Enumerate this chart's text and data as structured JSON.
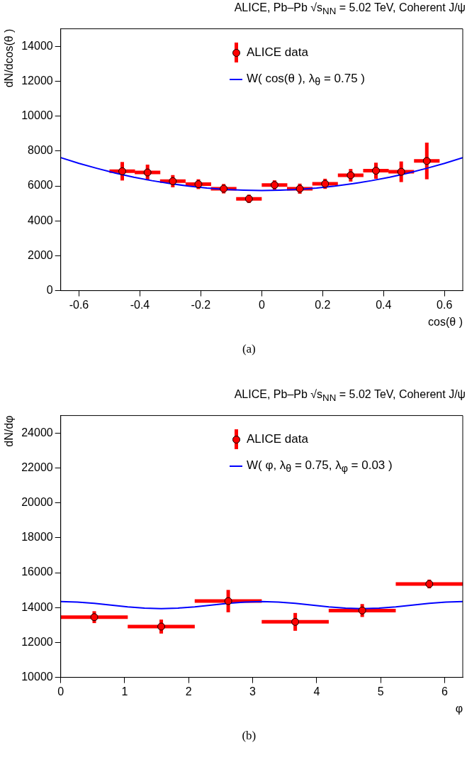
{
  "chart_data": [
    {
      "type": "scatter",
      "title": "ALICE, Pb–Pb √s$_{NN}$ = 5.02 TeV, Coherent J/ψ",
      "xlabel": "cos(θ )",
      "ylabel": "dN/dcos(θ )",
      "xlim": [
        -0.66,
        0.66
      ],
      "xticks": [
        -0.6,
        -0.4,
        -0.2,
        0,
        0.2,
        0.4,
        0.6
      ],
      "ylim": [
        0,
        15000
      ],
      "yticks": [
        0,
        2000,
        4000,
        6000,
        8000,
        10000,
        12000,
        14000
      ],
      "legend": "top",
      "annotations": [
        "(a)"
      ],
      "series": [
        {
          "name": "ALICE data",
          "type": "scatter",
          "color": "#ff0000",
          "marker": "circle",
          "x": [
            -0.458,
            -0.375,
            -0.292,
            -0.208,
            -0.125,
            -0.042,
            0.042,
            0.125,
            0.208,
            0.292,
            0.375,
            0.458,
            0.542
          ],
          "values": [
            6840,
            6770,
            6270,
            6100,
            5840,
            5260,
            6050,
            5840,
            6120,
            6610,
            6870,
            6810,
            7430
          ],
          "errors": [
            530,
            450,
            350,
            280,
            270,
            240,
            270,
            290,
            290,
            360,
            460,
            590,
            1050
          ],
          "xerrors": [
            0.042,
            0.042,
            0.042,
            0.042,
            0.042,
            0.042,
            0.042,
            0.042,
            0.042,
            0.042,
            0.042,
            0.042,
            0.042
          ]
        },
        {
          "name": "W( cos(θ ), λ$_{θ}$ = 0.75 )",
          "type": "line",
          "color": "#0000ff",
          "marker": "none",
          "x": [
            -0.66,
            -0.6,
            -0.54,
            -0.48,
            -0.42,
            -0.36,
            -0.3,
            -0.24,
            -0.18,
            -0.12,
            -0.06,
            0,
            0.06,
            0.12,
            0.18,
            0.24,
            0.3,
            0.36,
            0.42,
            0.48,
            0.54,
            0.6,
            0.66
          ],
          "values": [
            7620,
            7290,
            7000,
            6730,
            6500,
            6300,
            6130,
            5990,
            5880,
            5800,
            5760,
            5740,
            5760,
            5800,
            5880,
            5990,
            6130,
            6300,
            6500,
            6730,
            7000,
            7290,
            7620
          ]
        }
      ]
    },
    {
      "type": "scatter",
      "title": "ALICE, Pb–Pb √s$_{NN}$ = 5.02 TeV, Coherent J/ψ",
      "xlabel": "φ",
      "ylabel": "dN/dφ",
      "xlim": [
        0,
        6.283
      ],
      "xticks": [
        0,
        1,
        2,
        3,
        4,
        5,
        6
      ],
      "ylim": [
        10000,
        25000
      ],
      "yticks": [
        10000,
        12000,
        14000,
        16000,
        18000,
        20000,
        22000,
        24000
      ],
      "legend": "top",
      "annotations": [
        "(b)"
      ],
      "series": [
        {
          "name": "ALICE data",
          "type": "scatter",
          "color": "#ff0000",
          "marker": "circle",
          "x": [
            0.524,
            1.571,
            2.618,
            3.665,
            4.712,
            5.76
          ],
          "values": [
            13450,
            12910,
            14370,
            13180,
            13830,
            15350
          ],
          "errors": [
            340,
            400,
            640,
            510,
            370,
            250
          ],
          "xerrors": [
            0.524,
            0.524,
            0.524,
            0.524,
            0.524,
            0.524
          ]
        },
        {
          "name": "W( φ, λ$_{θ}$ = 0.75, λ$_{φ}$ = 0.03 )",
          "type": "line",
          "color": "#0000ff",
          "marker": "none",
          "x": [
            0,
            0.262,
            0.524,
            0.785,
            1.047,
            1.309,
            1.571,
            1.833,
            2.094,
            2.356,
            2.618,
            2.88,
            3.142,
            3.403,
            3.665,
            3.927,
            4.189,
            4.451,
            4.712,
            4.974,
            5.236,
            5.498,
            5.76,
            6.021,
            6.283
          ],
          "values": [
            14340,
            14310,
            14240,
            14140,
            14040,
            13970,
            13940,
            13970,
            14040,
            14140,
            14240,
            14310,
            14340,
            14310,
            14240,
            14140,
            14040,
            13970,
            13940,
            13970,
            14040,
            14140,
            14240,
            14310,
            14340
          ]
        }
      ]
    }
  ]
}
